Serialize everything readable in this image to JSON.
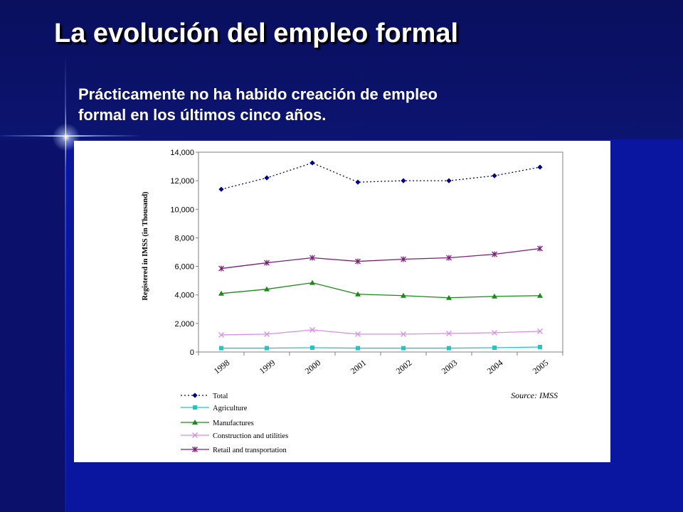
{
  "slide": {
    "title": "La evolución del empleo formal",
    "subtitle_line1": "Prácticamente no ha habido creación de empleo",
    "subtitle_line2": "formal en los últimos cinco años."
  },
  "chart_data": {
    "type": "line",
    "ylabel": "Registered in IMSS (in Thousand)",
    "source": "Source: IMSS",
    "categories": [
      "1998",
      "1999",
      "2000",
      "2001",
      "2002",
      "2003",
      "2004",
      "2005"
    ],
    "ylim": [
      0,
      14000
    ],
    "yticks": [
      0,
      2000,
      4000,
      6000,
      8000,
      10000,
      12000,
      14000
    ],
    "ytick_labels": [
      "0",
      "2,000",
      "4,000",
      "6,000",
      "8,000",
      "10,000",
      "12,000",
      "14,000"
    ],
    "grid": false,
    "legend_position": "bottom-left",
    "series": [
      {
        "name": "Total",
        "color": "#00008b",
        "marker": "diamond",
        "dashed": true,
        "values": [
          11400,
          12200,
          13250,
          11900,
          12000,
          12000,
          12350,
          12950
        ]
      },
      {
        "name": "Agriculture",
        "color": "#1fc6c6",
        "marker": "square",
        "dashed": false,
        "values": [
          270,
          270,
          300,
          270,
          270,
          270,
          300,
          350
        ]
      },
      {
        "name": "Manufactures",
        "color": "#1a8a1a",
        "marker": "triangle",
        "dashed": false,
        "values": [
          4100,
          4400,
          4850,
          4050,
          3950,
          3800,
          3900,
          3950
        ]
      },
      {
        "name": "Construction and utilities",
        "color": "#d48fe6",
        "marker": "x",
        "dashed": false,
        "values": [
          1200,
          1250,
          1550,
          1250,
          1250,
          1300,
          1350,
          1450
        ]
      },
      {
        "name": "Retail and transportation",
        "color": "#7a1f7a",
        "marker": "star",
        "dashed": false,
        "values": [
          5850,
          6250,
          6600,
          6350,
          6500,
          6600,
          6850,
          7250
        ]
      }
    ]
  }
}
